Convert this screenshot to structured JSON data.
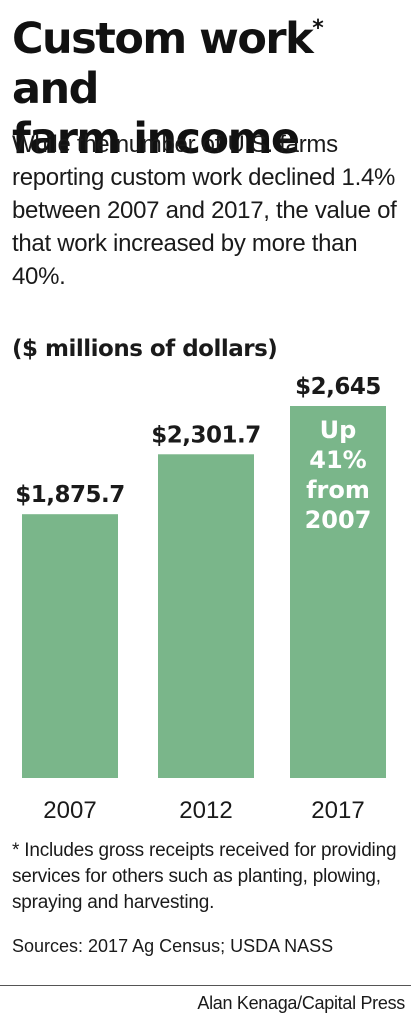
{
  "title": {
    "line1": "Custom work",
    "asterisk": "*",
    "line1_end": " and",
    "line2": "farm income"
  },
  "subtitle": "While the number of U.S. farms reporting custom work declined 1.4% between 2007 and 2017, the value of that work increased by more than 40%.",
  "units_label": "($ millions of dollars)",
  "bar_color": "#7ab68a",
  "chart_data": {
    "type": "bar",
    "categories": [
      "2007",
      "2012",
      "2017"
    ],
    "values": [
      1875.7,
      2301.7,
      2645
    ],
    "data_labels": [
      "$1,875.7",
      "$2,301.7",
      "$2,645"
    ],
    "ylim": [
      0,
      2645
    ],
    "grid": false,
    "annotation": {
      "category": "2017",
      "lines": [
        "Up",
        "41%",
        "from",
        "2007"
      ]
    }
  },
  "footnote": "* Includes gross receipts received for providing services for others such as planting, plowing, spraying and harvesting.",
  "sources": "Sources: 2017 Ag Census; USDA NASS",
  "credit": "Alan Kenaga/Capital Press"
}
